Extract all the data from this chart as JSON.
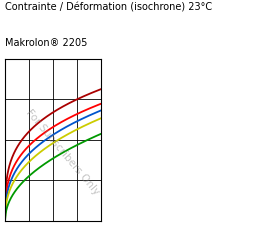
{
  "title_line1": "Contrainte / Déformation (isochrone) 23°C",
  "title_line2": "Makrolon® 2205",
  "background_color": "#ffffff",
  "plot_bg_color": "#ffffff",
  "grid_color": "#000000",
  "watermark": "For Subscribers Only",
  "curve_params": [
    {
      "color": "#aa0000",
      "a": 2.2,
      "b": 0.28
    },
    {
      "color": "#ff0000",
      "a": 1.85,
      "b": 0.32
    },
    {
      "color": "#0055cc",
      "a": 1.65,
      "b": 0.36
    },
    {
      "color": "#cccc00",
      "a": 1.45,
      "b": 0.4
    },
    {
      "color": "#009900",
      "a": 1.1,
      "b": 0.48
    }
  ],
  "xlim": [
    0,
    4
  ],
  "ylim": [
    0,
    4
  ],
  "xticks": [
    0,
    1,
    2,
    3,
    4
  ],
  "yticks": [
    0,
    1,
    2,
    3,
    4
  ],
  "figsize": [
    2.59,
    2.25
  ],
  "dpi": 100,
  "title1_fontsize": 7.0,
  "title2_fontsize": 7.0,
  "watermark_fontsize": 7.5
}
